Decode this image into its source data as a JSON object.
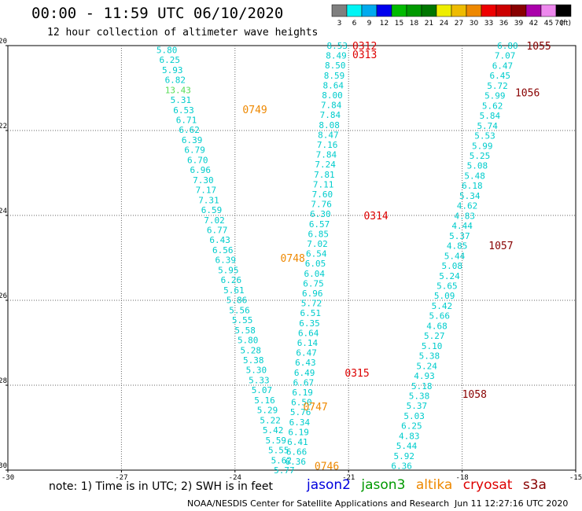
{
  "header": {
    "title": "00:00 - 11:59 UTC 06/10/2020",
    "subtitle": "12 hour collection of altimeter wave heights"
  },
  "colorbar": {
    "unit": "(ft)",
    "ticks": [
      "3",
      "6",
      "9",
      "12",
      "15",
      "18",
      "21",
      "24",
      "27",
      "30",
      "33",
      "36",
      "39",
      "42",
      "45",
      "70"
    ],
    "colors": [
      "#7f7f7f",
      "#00f5f5",
      "#00aaee",
      "#0000ee",
      "#00bb00",
      "#009900",
      "#007700",
      "#eeee00",
      "#eebb00",
      "#ee8800",
      "#ee0000",
      "#cc0000",
      "#880000",
      "#aa00aa",
      "#ee88ee",
      "#000000"
    ]
  },
  "footer": {
    "note": "note: 1) Time is in UTC; 2) SWH is in feet",
    "legend": [
      {
        "label": "jason2",
        "color": "#0000dd"
      },
      {
        "label": "jason3",
        "color": "#009900"
      },
      {
        "label": "altika",
        "color": "#ee8800"
      },
      {
        "label": "cryosat",
        "color": "#dd0000"
      },
      {
        "label": "s3a",
        "color": "#880000"
      }
    ],
    "credit": "NOAA/NESDIS Center for Satellite Applications and Research",
    "timestamp": "Jun 11 12:27:16 UTC 2020"
  },
  "chart_data": {
    "type": "scatter",
    "title": "00:00 - 11:59 UTC 06/10/2020",
    "subtitle": "12 hour collection of altimeter wave heights",
    "xlim": [
      -30,
      -15
    ],
    "ylim": [
      -30,
      -20
    ],
    "x_ticks": [
      -30,
      -27,
      -24,
      -21,
      -18,
      -15
    ],
    "y_ticks": [
      -20,
      -22,
      -24,
      -26,
      -28,
      -30
    ],
    "grid": true,
    "pass_labels": [
      {
        "text": "0312",
        "x": -20.9,
        "y": -20.0,
        "color": "#dd0000"
      },
      {
        "text": "0313",
        "x": -20.9,
        "y": -20.2,
        "color": "#dd0000"
      },
      {
        "text": "0749",
        "x": -23.8,
        "y": -21.5,
        "color": "#ee8800"
      },
      {
        "text": "0314",
        "x": -20.6,
        "y": -24.0,
        "color": "#dd0000"
      },
      {
        "text": "0748",
        "x": -22.8,
        "y": -25.0,
        "color": "#ee8800"
      },
      {
        "text": "0315",
        "x": -21.1,
        "y": -27.7,
        "color": "#dd0000"
      },
      {
        "text": "0747",
        "x": -22.2,
        "y": -28.5,
        "color": "#ee8800"
      },
      {
        "text": "0746",
        "x": -21.9,
        "y": -29.9,
        "color": "#ee8800"
      },
      {
        "text": "1055",
        "x": -16.3,
        "y": -20.0,
        "color": "#880000"
      },
      {
        "text": "1056",
        "x": -16.6,
        "y": -21.1,
        "color": "#880000"
      },
      {
        "text": "1057",
        "x": -17.3,
        "y": -24.7,
        "color": "#880000"
      },
      {
        "text": "1058",
        "x": -18.0,
        "y": -28.2,
        "color": "#880000"
      }
    ],
    "series": [
      {
        "name": "altika",
        "color": "#00cccc",
        "x_start": -25.8,
        "x_end": -22.7,
        "y_start": -20.1,
        "y_end": -30.0,
        "values": [
          "5.80",
          "6.25",
          "5.93",
          "6.82",
          "13.43",
          "5.31",
          "6.53",
          "6.71",
          "6.62",
          "6.39",
          "6.79",
          "6.70",
          "6.96",
          "7.30",
          "7.17",
          "7.31",
          "6.59",
          "7.02",
          "6.77",
          "6.43",
          "6.56",
          "6.39",
          "5.95",
          "6.26",
          "5.61",
          "5.86",
          "5.56",
          "5.55",
          "5.58",
          "5.80",
          "5.28",
          "5.38",
          "5.30",
          "5.33",
          "5.07",
          "5.16",
          "5.29",
          "5.22",
          "5.42",
          "5.59",
          "5.55",
          "5.62",
          "5.77"
        ],
        "highlight": {
          "index": 4,
          "color": "#55dd55"
        }
      },
      {
        "name": "cryosat",
        "color": "#00cccc",
        "x_start": -21.3,
        "x_end": -22.4,
        "y_start": -20.0,
        "y_end": -29.8,
        "values": [
          "8.53",
          "8.49",
          "8.50",
          "8.59",
          "8.64",
          "8.00",
          "7.84",
          "7.84",
          "8.08",
          "8.47",
          "7.16",
          "7.84",
          "7.24",
          "7.81",
          "7.11",
          "7.60",
          "7.76",
          "6.30",
          "6.57",
          "6.85",
          "7.02",
          "6.54",
          "6.05",
          "6.04",
          "6.75",
          "6.96",
          "5.72",
          "6.51",
          "6.35",
          "6.64",
          "6.14",
          "6.47",
          "6.43",
          "6.49",
          "6.67",
          "6.19",
          "6.50",
          "5.76",
          "6.34",
          "6.19",
          "6.41",
          "6.66",
          "6.36"
        ]
      },
      {
        "name": "s3a",
        "color": "#00cccc",
        "x_start": -16.8,
        "x_end": -19.6,
        "y_start": -20.0,
        "y_end": -29.9,
        "values": [
          "6.80",
          "7.07",
          "6.47",
          "6.45",
          "5.72",
          "5.99",
          "5.62",
          "5.84",
          "5.74",
          "5.53",
          "5.99",
          "5.25",
          "5.08",
          "5.48",
          "6.18",
          "5.34",
          "4.62",
          "4.83",
          "4.44",
          "5.37",
          "4.85",
          "5.44",
          "5.08",
          "5.24",
          "5.65",
          "5.09",
          "5.42",
          "5.66",
          "4.68",
          "5.27",
          "5.10",
          "5.38",
          "5.24",
          "4.93",
          "5.18",
          "5.38",
          "5.37",
          "5.03",
          "6.25",
          "4.83",
          "5.44",
          "5.92",
          "6.36"
        ]
      }
    ]
  }
}
